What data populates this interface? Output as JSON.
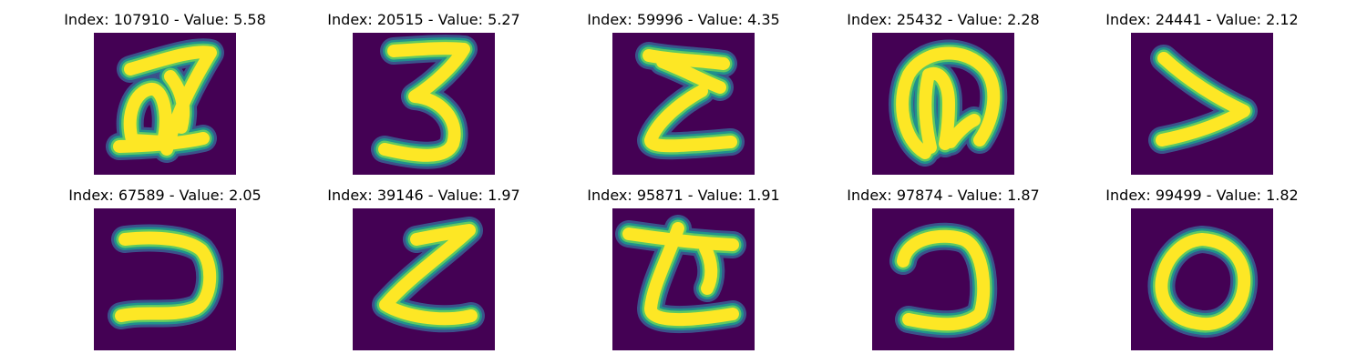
{
  "colors": {
    "background": "#440154",
    "stroke_core": "#fde725",
    "stroke_mid": "#5ec962",
    "stroke_edge": "#21918c",
    "stroke_fade": "#3b528b"
  },
  "panels": [
    {
      "title": "Index: 107910 - Value: 5.58"
    },
    {
      "title": "Index: 20515 - Value: 5.27"
    },
    {
      "title": "Index: 59996 - Value: 4.35"
    },
    {
      "title": "Index: 25432 - Value: 2.28"
    },
    {
      "title": "Index: 24441 - Value: 2.12"
    },
    {
      "title": "Index: 67589 - Value: 2.05"
    },
    {
      "title": "Index: 39146 - Value: 1.97"
    },
    {
      "title": "Index: 95871 - Value: 1.91"
    },
    {
      "title": "Index: 97874 - Value: 1.87"
    },
    {
      "title": "Index: 99499 - Value: 1.82"
    }
  ]
}
